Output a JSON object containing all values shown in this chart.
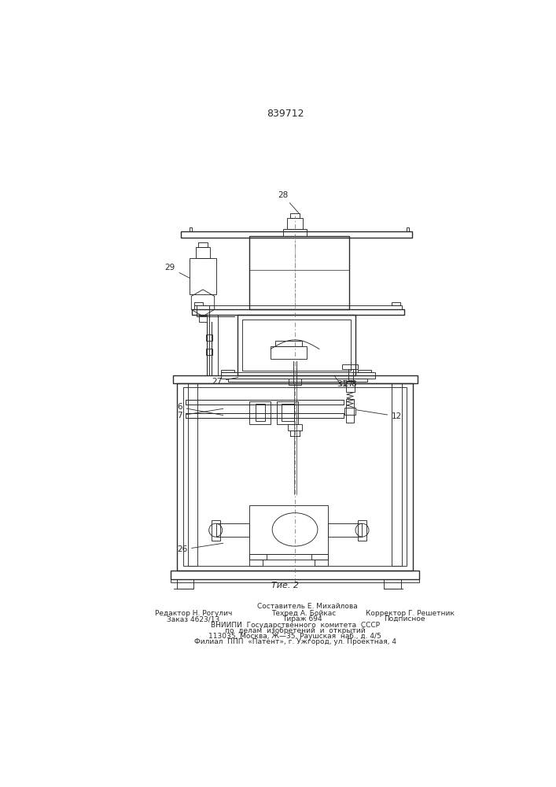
{
  "patent_number": "839712",
  "fig_label": "Τие. 2",
  "background_color": "#ffffff",
  "line_color": "#2a2a2a",
  "footer_lines": [
    "Составитель Е. Михайлова",
    "Редактор Н. Рогулич",
    "Техред А. Бойкас",
    "Корректор Г. Решетник",
    "Заказ 4623/13",
    "Тираж 694",
    "Подписное",
    "ВНИИПИ  Государственного  комитета  СССР",
    "по  делам  изобретений  и  открытий",
    "113035, Москва, Ж—35, Раушская  наб., д. 4/5",
    "Филиал  ППП  «Патент», г. Ужгород, ул. Проектная, 4"
  ]
}
